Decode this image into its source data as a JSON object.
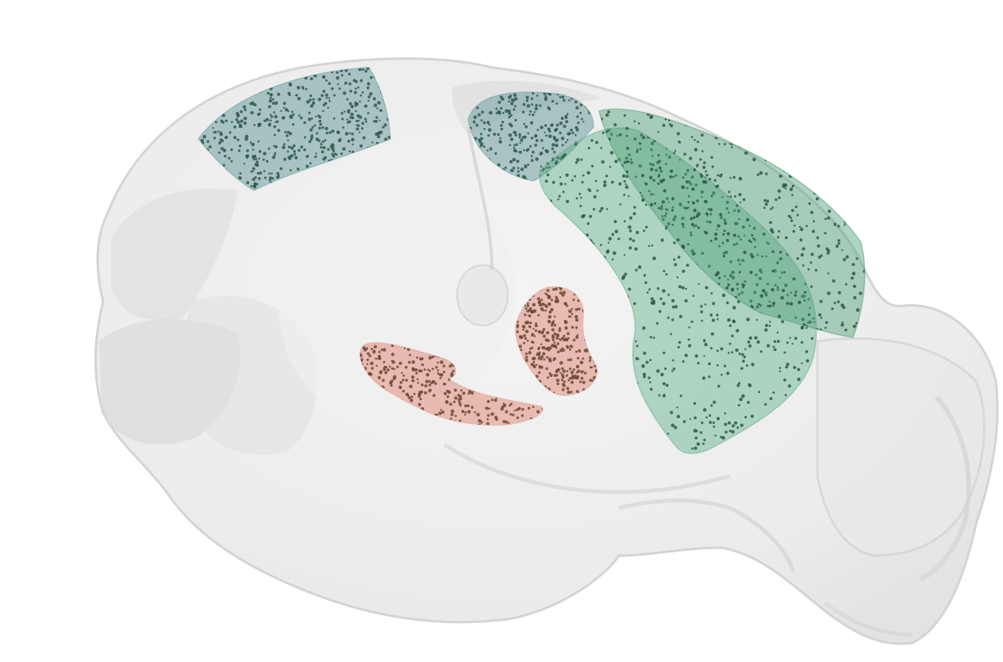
{
  "scene": {
    "background": "#ffffff",
    "brain_fill": "#d8d8d8",
    "brain_stroke": "#c4c4c4",
    "regions": [
      {
        "name": "frontal-blue-region",
        "color": "#6f9ea0",
        "dot_color": "#2f5a4c",
        "dots": 620
      },
      {
        "name": "midline-blue-region",
        "color": "#6f9ea0",
        "dot_color": "#2f5a4c",
        "dots": 360
      },
      {
        "name": "large-green-region",
        "color": "#5fb08a",
        "dot_color": "#2b5a44",
        "dots": 1000
      },
      {
        "name": "green-strip-region",
        "color": "#4f9f78",
        "dot_color": "#2b5a44",
        "dots": 700
      },
      {
        "name": "pink-elongated-region",
        "color": "#e2a397",
        "dot_color": "#6b4a32",
        "dots": 520
      },
      {
        "name": "pink-wedge-region",
        "color": "#e2a397",
        "dot_color": "#6b4a32",
        "dots": 420
      }
    ]
  }
}
